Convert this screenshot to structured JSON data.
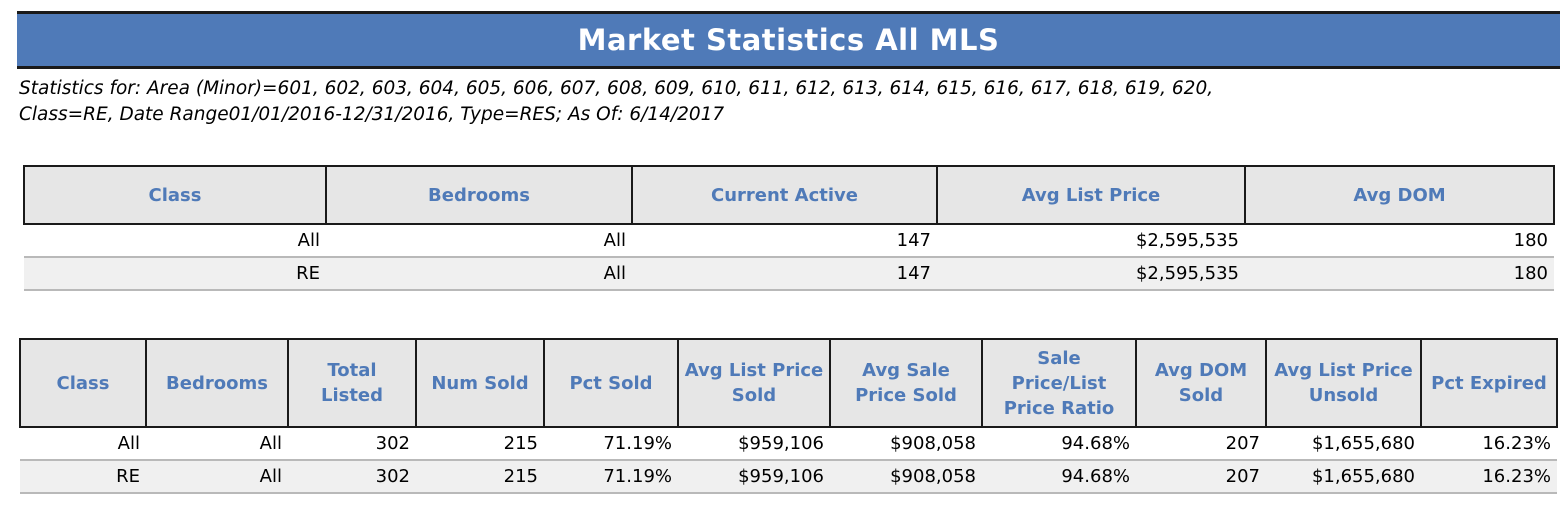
{
  "title": "Market Statistics All MLS",
  "criteria": {
    "line1": "Statistics for: Area (Minor)=601, 602, 603, 604, 605, 606, 607, 608, 609, 610, 611, 612, 613, 614, 615, 616, 617, 618, 619, 620,",
    "line2": "Class=RE, Date Range01/01/2016-12/31/2016, Type=RES; As Of: 6/14/2017"
  },
  "active_table": {
    "headers": [
      "Class",
      "Bedrooms",
      "Current Active",
      "Avg List Price",
      "Avg DOM"
    ],
    "rows": [
      [
        "All",
        "All",
        "147",
        "$2,595,535",
        "180"
      ],
      [
        "RE",
        "All",
        "147",
        "$2,595,535",
        "180"
      ]
    ]
  },
  "sold_table": {
    "headers": [
      [
        "Class"
      ],
      [
        "Bedrooms"
      ],
      [
        "Total",
        "Listed"
      ],
      [
        "Num Sold"
      ],
      [
        "Pct Sold"
      ],
      [
        "Avg List Price",
        "Sold"
      ],
      [
        "Avg Sale",
        "Price Sold"
      ],
      [
        "Sale",
        "Price/List",
        "Price Ratio"
      ],
      [
        "Avg DOM",
        "Sold"
      ],
      [
        "Avg List Price",
        "Unsold"
      ],
      [
        "Pct Expired"
      ]
    ],
    "rows": [
      [
        "All",
        "All",
        "302",
        "215",
        "71.19%",
        "$959,106",
        "$908,058",
        "94.68%",
        "207",
        "$1,655,680",
        "16.23%"
      ],
      [
        "RE",
        "All",
        "302",
        "215",
        "71.19%",
        "$959,106",
        "$908,058",
        "94.68%",
        "207",
        "$1,655,680",
        "16.23%"
      ]
    ]
  }
}
